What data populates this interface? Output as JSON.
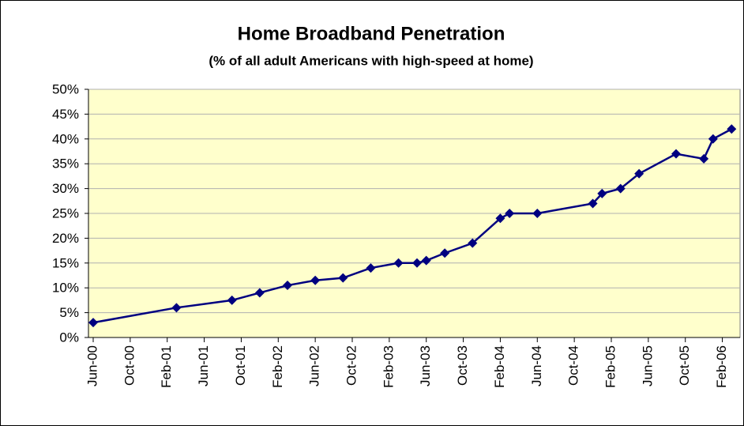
{
  "chart_data": {
    "type": "line",
    "title": "Home Broadband Penetration",
    "subtitle": "(% of all adult Americans with high-speed at home)",
    "x": [
      "2000-06",
      "2001-03",
      "2001-09",
      "2001-12",
      "2002-03",
      "2002-06",
      "2002-09",
      "2002-12",
      "2003-03",
      "2003-05",
      "2003-06",
      "2003-08",
      "2003-11",
      "2004-02",
      "2004-03",
      "2004-06",
      "2004-12",
      "2005-01",
      "2005-03",
      "2005-05",
      "2005-09",
      "2005-12",
      "2006-01",
      "2006-03"
    ],
    "series": [
      {
        "name": "Home broadband",
        "color": "#000080",
        "values": [
          3,
          6,
          7.5,
          9,
          10.5,
          11.5,
          12,
          14,
          15,
          15,
          15.5,
          17,
          19,
          24,
          25,
          25,
          27,
          29,
          30,
          33,
          37,
          36,
          40,
          42
        ]
      }
    ],
    "xlim": [
      "2000-06",
      "2006-04"
    ],
    "xticks": [
      {
        "value": "2000-06",
        "label": "Jun-00"
      },
      {
        "value": "2000-10",
        "label": "Oct-00"
      },
      {
        "value": "2001-02",
        "label": "Feb-01"
      },
      {
        "value": "2001-06",
        "label": "Jun-01"
      },
      {
        "value": "2001-10",
        "label": "Oct-01"
      },
      {
        "value": "2002-02",
        "label": "Feb-02"
      },
      {
        "value": "2002-06",
        "label": "Jun-02"
      },
      {
        "value": "2002-10",
        "label": "Oct-02"
      },
      {
        "value": "2003-02",
        "label": "Feb-03"
      },
      {
        "value": "2003-06",
        "label": "Jun-03"
      },
      {
        "value": "2003-10",
        "label": "Oct-03"
      },
      {
        "value": "2004-02",
        "label": "Feb-04"
      },
      {
        "value": "2004-06",
        "label": "Jun-04"
      },
      {
        "value": "2004-10",
        "label": "Oct-04"
      },
      {
        "value": "2005-02",
        "label": "Feb-05"
      },
      {
        "value": "2005-06",
        "label": "Jun-05"
      },
      {
        "value": "2005-10",
        "label": "Oct-05"
      },
      {
        "value": "2006-02",
        "label": "Feb-06"
      }
    ],
    "ylim": [
      0,
      50
    ],
    "yticks": [
      {
        "value": 0,
        "label": "0%"
      },
      {
        "value": 5,
        "label": "5%"
      },
      {
        "value": 10,
        "label": "10%"
      },
      {
        "value": 15,
        "label": "15%"
      },
      {
        "value": 20,
        "label": "20%"
      },
      {
        "value": 25,
        "label": "25%"
      },
      {
        "value": 30,
        "label": "30%"
      },
      {
        "value": 35,
        "label": "35%"
      },
      {
        "value": 40,
        "label": "40%"
      },
      {
        "value": 45,
        "label": "45%"
      },
      {
        "value": 50,
        "label": "50%"
      }
    ],
    "grid": true,
    "plot_background": "#ffffcc"
  }
}
